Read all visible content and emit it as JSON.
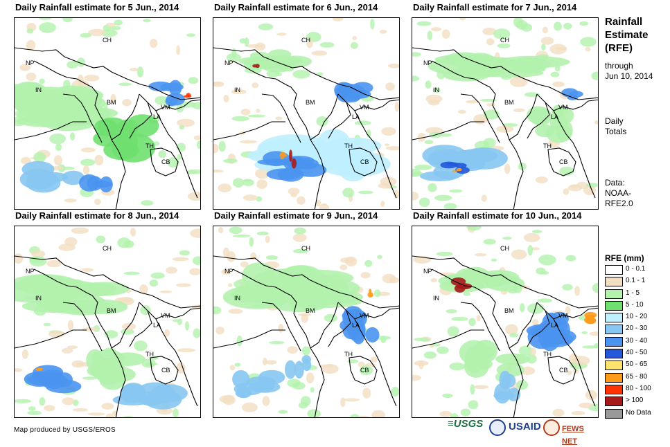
{
  "panels": [
    {
      "title": "Daily Rainfall estimate for 5 Jun., 2014"
    },
    {
      "title": "Daily Rainfall estimate for 6 Jun., 2014"
    },
    {
      "title": "Daily Rainfall estimate for 7 Jun., 2014"
    },
    {
      "title": "Daily Rainfall estimate for 8 Jun., 2014"
    },
    {
      "title": "Daily Rainfall estimate for 9 Jun., 2014"
    },
    {
      "title": "Daily Rainfall estimate for 10 Jun., 2014"
    }
  ],
  "country_labels": {
    "ch": "CH",
    "np": "NP",
    "in": "IN",
    "bm": "BM",
    "la": "LA",
    "vm": "VM",
    "th": "TH",
    "cb": "CB"
  },
  "sidebar": {
    "title_lines": [
      "Rainfall",
      "Estimate",
      "(RFE)"
    ],
    "through_lines": [
      "through",
      "Jun 10, 2014"
    ],
    "daily_lines": [
      "Daily",
      "Totals"
    ],
    "data_lines": [
      "Data:",
      "NOAA-",
      "RFE2.0"
    ]
  },
  "legend": {
    "title": "RFE (mm)",
    "items": [
      {
        "label": "0 - 0.1",
        "color": "#ffffff"
      },
      {
        "label": "0.1 - 1",
        "color": "#f2dfc2"
      },
      {
        "label": "1 - 5",
        "color": "#b3f2ad"
      },
      {
        "label": "5 - 10",
        "color": "#6fe06f"
      },
      {
        "label": "10 - 20",
        "color": "#bff0ff"
      },
      {
        "label": "20 - 30",
        "color": "#87c7f2"
      },
      {
        "label": "30 - 40",
        "color": "#4a94f0"
      },
      {
        "label": "40 - 50",
        "color": "#2458d9"
      },
      {
        "label": "50 - 65",
        "color": "#ffe36f"
      },
      {
        "label": "65 - 80",
        "color": "#ff9a1a"
      },
      {
        "label": "80 - 100",
        "color": "#ff3300"
      },
      {
        "label": "> 100",
        "color": "#a61a1a"
      },
      {
        "label": "No Data",
        "color": "#999999"
      }
    ]
  },
  "credit": "Map produced by USGS/EROS",
  "logos": {
    "usgs": "≡USGS",
    "usaid": "USAID",
    "fewsnet": "FEWS NET"
  }
}
